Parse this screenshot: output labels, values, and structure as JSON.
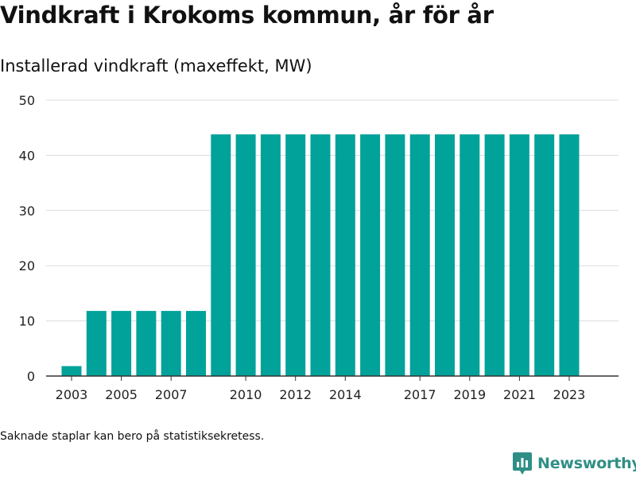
{
  "header": {
    "title": "Vindkraft i Krokoms kommun, år för år",
    "subtitle": "Installerad vindkraft (maxeffekt, MW)"
  },
  "footer": {
    "note": "Saknade staplar kan bero på statistiksekretess.",
    "brand": "Newsworthy",
    "brand_icon": "bar-chart-logo-icon"
  },
  "colors": {
    "bar": "#00a29a",
    "grid": "#dcdcdc",
    "axis": "#333333",
    "brand": "#2f8f86"
  },
  "chart_data": {
    "type": "bar",
    "title": "Vindkraft i Krokoms kommun, år för år",
    "subtitle": "Installerad vindkraft (maxeffekt, MW)",
    "xlabel": "",
    "ylabel": "",
    "ylim": [
      0,
      50
    ],
    "yticks": [
      0,
      10,
      20,
      30,
      40,
      50
    ],
    "grid": true,
    "categories": [
      "2003",
      "2004",
      "2005",
      "2006",
      "2007",
      "2008",
      "2009",
      "2010",
      "2011",
      "2012",
      "2013",
      "2014",
      "2015",
      "2016",
      "2017",
      "2018",
      "2019",
      "2020",
      "2021",
      "2022",
      "2023"
    ],
    "values": [
      1.8,
      11.8,
      11.8,
      11.8,
      11.8,
      11.8,
      43.8,
      43.8,
      43.8,
      43.8,
      43.8,
      43.8,
      43.8,
      43.8,
      43.8,
      43.8,
      43.8,
      43.8,
      43.8,
      43.8,
      43.8
    ],
    "xtick_labels": [
      "2003",
      "2005",
      "2007",
      "2010",
      "2012",
      "2014",
      "2017",
      "2019",
      "2021",
      "2023"
    ]
  }
}
